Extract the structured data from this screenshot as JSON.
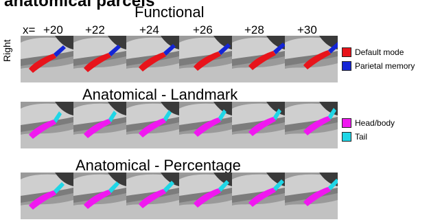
{
  "title": "anatomical parcels",
  "side_label": "Right",
  "x_prefix": "x=",
  "x_positions": [
    "+20",
    "+22",
    "+24",
    "+26",
    "+28",
    "+30"
  ],
  "rows": [
    {
      "title": "Functional",
      "legend": [
        {
          "label": "Default mode",
          "color": "#e8141b"
        },
        {
          "label": "Parietal memory",
          "color": "#1425d6"
        }
      ]
    },
    {
      "title": "Anatomical - Landmark",
      "legend": [
        {
          "label": "Head/body",
          "color": "#f018f0"
        },
        {
          "label": "Tail",
          "color": "#1fd6e6"
        }
      ]
    },
    {
      "title": "Anatomical - Percentage",
      "legend": []
    }
  ]
}
